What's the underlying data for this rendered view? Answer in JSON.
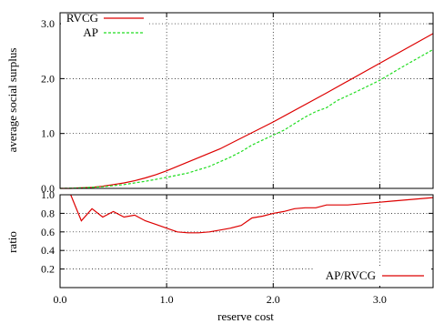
{
  "chart_data": [
    {
      "type": "line",
      "title": "",
      "xlabel": "",
      "ylabel": "average social surplus",
      "xlim": [
        0,
        3.5
      ],
      "ylim": [
        0,
        3.2
      ],
      "yticks": [
        "0.0",
        "1.0",
        "2.0",
        "3.0"
      ],
      "grid": true,
      "legend": "top-left",
      "series": [
        {
          "name": "RVCG",
          "color": "#dd0000",
          "x": [
            0,
            0.1,
            0.2,
            0.3,
            0.4,
            0.5,
            0.6,
            0.7,
            0.8,
            0.9,
            1.0,
            1.5,
            2.0,
            2.5,
            3.0,
            3.5
          ],
          "y": [
            0.0,
            0.0,
            0.01,
            0.02,
            0.04,
            0.07,
            0.1,
            0.14,
            0.19,
            0.25,
            0.32,
            0.72,
            1.21,
            1.74,
            2.28,
            2.82
          ]
        },
        {
          "name": "AP",
          "color": "#22dd22",
          "x": [
            0,
            0.2,
            0.4,
            0.6,
            0.8,
            1.0,
            1.2,
            1.4,
            1.6,
            1.7,
            1.8,
            1.9,
            2.0,
            2.1,
            2.2,
            2.3,
            2.4,
            2.5,
            2.6,
            2.8,
            3.0,
            3.2,
            3.5
          ],
          "y": [
            0.0,
            0.01,
            0.03,
            0.07,
            0.13,
            0.2,
            0.28,
            0.4,
            0.57,
            0.67,
            0.79,
            0.88,
            0.97,
            1.06,
            1.18,
            1.3,
            1.4,
            1.47,
            1.6,
            1.78,
            1.97,
            2.2,
            2.53
          ]
        }
      ]
    },
    {
      "type": "line",
      "title": "",
      "xlabel": "reserve cost",
      "ylabel": "ratio",
      "xlim": [
        0,
        3.5
      ],
      "ylim": [
        0,
        1.0
      ],
      "xticks": [
        "0.0",
        "1.0",
        "2.0",
        "3.0"
      ],
      "yticks": [
        "0.2",
        "0.4",
        "0.6",
        "0.8",
        "1.0"
      ],
      "grid": true,
      "legend": "bottom-right",
      "series": [
        {
          "name": "AP/RVCG",
          "color": "#dd0000",
          "x": [
            0.1,
            0.2,
            0.3,
            0.4,
            0.5,
            0.6,
            0.7,
            0.8,
            0.9,
            1.0,
            1.1,
            1.2,
            1.3,
            1.4,
            1.5,
            1.6,
            1.7,
            1.8,
            1.9,
            2.0,
            2.1,
            2.2,
            2.3,
            2.4,
            2.5,
            2.6,
            2.7,
            2.8,
            2.9,
            3.0,
            3.1,
            3.2,
            3.3,
            3.4,
            3.5
          ],
          "y": [
            1.0,
            0.72,
            0.85,
            0.76,
            0.82,
            0.76,
            0.78,
            0.72,
            0.68,
            0.64,
            0.6,
            0.59,
            0.59,
            0.6,
            0.62,
            0.64,
            0.67,
            0.75,
            0.77,
            0.8,
            0.82,
            0.85,
            0.86,
            0.86,
            0.89,
            0.89,
            0.89,
            0.9,
            0.91,
            0.92,
            0.93,
            0.94,
            0.95,
            0.96,
            0.97
          ]
        }
      ]
    }
  ]
}
